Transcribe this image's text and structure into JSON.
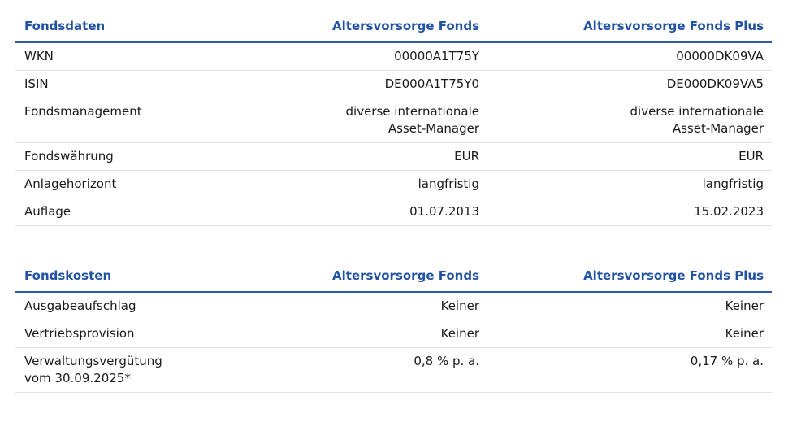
{
  "colors": {
    "accent_blue": "#2253a3",
    "header_rule_blue": "#3059a8",
    "row_divider_gray": "#e3e3e3",
    "body_text": "#1a1a1a",
    "background": "#ffffff"
  },
  "tables": [
    {
      "title": "Fondsdaten",
      "columns": [
        "Altersvorsorge Fonds",
        "Altersvorsorge Fonds Plus"
      ],
      "rows": [
        {
          "label": "WKN",
          "fonds": "00000A1T75Y",
          "fonds_plus": "00000DK09VA"
        },
        {
          "label": "ISIN",
          "fonds": "DE000A1T75Y0",
          "fonds_plus": "DE000DK09VA5"
        },
        {
          "label": "Fondsmanagement",
          "fonds": "diverse internationale\nAsset-Manager",
          "fonds_plus": "diverse internationale\nAsset-Manager"
        },
        {
          "label": "Fondswährung",
          "fonds": "EUR",
          "fonds_plus": "EUR"
        },
        {
          "label": "Anlagehorizont",
          "fonds": "langfristig",
          "fonds_plus": "langfristig"
        },
        {
          "label": "Auflage",
          "fonds": "01.07.2013",
          "fonds_plus": "15.02.2023"
        }
      ]
    },
    {
      "title": "Fondskosten",
      "columns": [
        "Altersvorsorge Fonds",
        "Altersvorsorge Fonds Plus"
      ],
      "rows": [
        {
          "label": "Ausgabeaufschlag",
          "fonds": "Keiner",
          "fonds_plus": "Keiner"
        },
        {
          "label": "Vertriebsprovision",
          "fonds": "Keiner",
          "fonds_plus": "Keiner"
        },
        {
          "label": "Verwaltungsvergütung\nvom 30.09.2025*",
          "fonds": "0,8 % p. a.",
          "fonds_plus": "0,17 % p. a."
        }
      ]
    }
  ]
}
